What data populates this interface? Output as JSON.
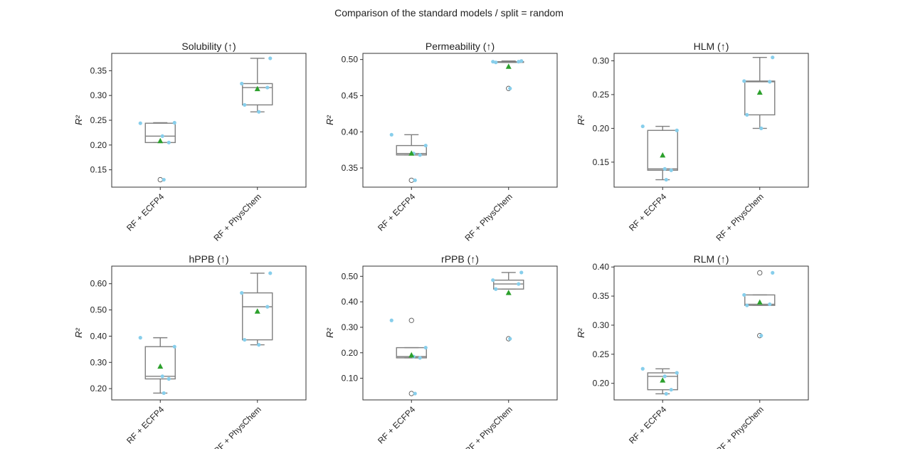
{
  "suptitle": "Comparison of the standard models / split = random",
  "colors": {
    "box": "#7f7f7f",
    "points": "#87ceeb",
    "mean": "#2ca02c",
    "frame": "#333333",
    "outlier": "#555555"
  },
  "chart_data": [
    {
      "type": "box",
      "title": "Solubility (↑)",
      "ylabel": "R²",
      "ylim": [
        0.115,
        0.385
      ],
      "yticks": [
        0.15,
        0.2,
        0.25,
        0.3,
        0.35
      ],
      "ytick_labels": [
        "0.15",
        "0.20",
        "0.25",
        "0.30",
        "0.35"
      ],
      "categories": [
        "RF + ECFP4",
        "RF + PhysChem"
      ],
      "series": [
        {
          "name": "RF + ECFP4",
          "values": [
            0.244,
            0.245,
            0.218,
            0.205,
            0.13
          ],
          "box": {
            "min": 0.205,
            "q1": 0.205,
            "median": 0.218,
            "q3": 0.244,
            "max": 0.245
          },
          "mean": 0.208,
          "outliers": [
            0.13
          ]
        },
        {
          "name": "RF + PhysChem",
          "values": [
            0.375,
            0.324,
            0.316,
            0.281,
            0.267
          ],
          "box": {
            "min": 0.267,
            "q1": 0.281,
            "median": 0.316,
            "q3": 0.324,
            "max": 0.375
          },
          "mean": 0.313,
          "outliers": []
        }
      ]
    },
    {
      "type": "box",
      "title": "Permeability (↑)",
      "ylabel": "R²",
      "ylim": [
        0.3235,
        0.5085
      ],
      "yticks": [
        0.35,
        0.4,
        0.45,
        0.5
      ],
      "ytick_labels": [
        "0.35",
        "0.40",
        "0.45",
        "0.50"
      ],
      "categories": [
        "RF + ECFP4",
        "RF + PhysChem"
      ],
      "series": [
        {
          "name": "RF + ECFP4",
          "values": [
            0.396,
            0.381,
            0.37,
            0.368,
            0.333
          ],
          "box": {
            "min": 0.368,
            "q1": 0.368,
            "median": 0.37,
            "q3": 0.381,
            "max": 0.396
          },
          "mean": 0.37,
          "outliers": [
            0.333
          ]
        },
        {
          "name": "RF + PhysChem",
          "values": [
            0.498,
            0.497,
            0.497,
            0.496,
            0.46
          ],
          "box": {
            "min": 0.496,
            "q1": 0.496,
            "median": 0.497,
            "q3": 0.497,
            "max": 0.498
          },
          "mean": 0.49,
          "outliers": [
            0.46
          ]
        }
      ]
    },
    {
      "type": "box",
      "title": "HLM (↑)",
      "ylabel": "R²",
      "ylim": [
        0.113,
        0.311
      ],
      "yticks": [
        0.15,
        0.2,
        0.25,
        0.3
      ],
      "ytick_labels": [
        "0.15",
        "0.20",
        "0.25",
        "0.30"
      ],
      "categories": [
        "RF + ECFP4",
        "RF + PhysChem"
      ],
      "series": [
        {
          "name": "RF + ECFP4",
          "values": [
            0.203,
            0.197,
            0.14,
            0.138,
            0.124
          ],
          "box": {
            "min": 0.124,
            "q1": 0.138,
            "median": 0.14,
            "q3": 0.197,
            "max": 0.203
          },
          "mean": 0.16,
          "outliers": []
        },
        {
          "name": "RF + PhysChem",
          "values": [
            0.305,
            0.27,
            0.269,
            0.22,
            0.2
          ],
          "box": {
            "min": 0.2,
            "q1": 0.22,
            "median": 0.269,
            "q3": 0.27,
            "max": 0.305
          },
          "mean": 0.253,
          "outliers": []
        }
      ]
    },
    {
      "type": "box",
      "title": "hPPB (↑)",
      "ylabel": "R²",
      "ylim": [
        0.157,
        0.667
      ],
      "yticks": [
        0.2,
        0.3,
        0.4,
        0.5,
        0.6
      ],
      "ytick_labels": [
        "0.20",
        "0.30",
        "0.40",
        "0.50",
        "0.60"
      ],
      "categories": [
        "RF + ECFP4",
        "RF + PhysChem"
      ],
      "series": [
        {
          "name": "RF + ECFP4",
          "values": [
            0.394,
            0.36,
            0.247,
            0.237,
            0.183
          ],
          "box": {
            "min": 0.183,
            "q1": 0.237,
            "median": 0.247,
            "q3": 0.36,
            "max": 0.394
          },
          "mean": 0.284,
          "outliers": []
        },
        {
          "name": "RF + PhysChem",
          "values": [
            0.64,
            0.565,
            0.512,
            0.386,
            0.367
          ],
          "box": {
            "min": 0.367,
            "q1": 0.386,
            "median": 0.512,
            "q3": 0.565,
            "max": 0.64
          },
          "mean": 0.494,
          "outliers": []
        }
      ]
    },
    {
      "type": "box",
      "title": "rPPB (↑)",
      "ylabel": "R²",
      "ylim": [
        0.015,
        0.54
      ],
      "yticks": [
        0.1,
        0.2,
        0.3,
        0.4,
        0.5
      ],
      "ytick_labels": [
        "0.10",
        "0.20",
        "0.30",
        "0.40",
        "0.50"
      ],
      "categories": [
        "RF + ECFP4",
        "RF + PhysChem"
      ],
      "series": [
        {
          "name": "RF + ECFP4",
          "values": [
            0.327,
            0.22,
            0.185,
            0.18,
            0.04
          ],
          "box": {
            "min": 0.18,
            "q1": 0.18,
            "median": 0.185,
            "q3": 0.22,
            "max": 0.22
          },
          "mean": 0.19,
          "outliers": [
            0.327,
            0.04
          ]
        },
        {
          "name": "RF + PhysChem",
          "values": [
            0.515,
            0.485,
            0.47,
            0.45,
            0.255
          ],
          "box": {
            "min": 0.45,
            "q1": 0.45,
            "median": 0.47,
            "q3": 0.485,
            "max": 0.515
          },
          "mean": 0.435,
          "outliers": [
            0.255
          ]
        }
      ]
    },
    {
      "type": "box",
      "title": "RLM (↑)",
      "ylabel": "R²",
      "ylim": [
        0.1715,
        0.4015
      ],
      "yticks": [
        0.2,
        0.25,
        0.3,
        0.35,
        0.4
      ],
      "ytick_labels": [
        "0.20",
        "0.25",
        "0.30",
        "0.35",
        "0.40"
      ],
      "categories": [
        "RF + ECFP4",
        "RF + PhysChem"
      ],
      "series": [
        {
          "name": "RF + ECFP4",
          "values": [
            0.225,
            0.218,
            0.212,
            0.189,
            0.182
          ],
          "box": {
            "min": 0.182,
            "q1": 0.189,
            "median": 0.212,
            "q3": 0.218,
            "max": 0.225
          },
          "mean": 0.205,
          "outliers": []
        },
        {
          "name": "RF + PhysChem",
          "values": [
            0.39,
            0.352,
            0.336,
            0.334,
            0.282
          ],
          "box": {
            "min": 0.334,
            "q1": 0.334,
            "median": 0.336,
            "q3": 0.352,
            "max": 0.352
          },
          "mean": 0.339,
          "outliers": [
            0.39,
            0.282
          ]
        }
      ]
    }
  ]
}
